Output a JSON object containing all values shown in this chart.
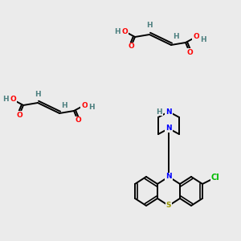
{
  "bg_color": "#ebebeb",
  "bond_color": "#000000",
  "atom_colors": {
    "N": "#0000ff",
    "S": "#999900",
    "O": "#ff0000",
    "Cl": "#00bb00",
    "H": "#4d8080",
    "C": "#000000"
  },
  "figsize": [
    3.0,
    3.0
  ],
  "dpi": 100
}
